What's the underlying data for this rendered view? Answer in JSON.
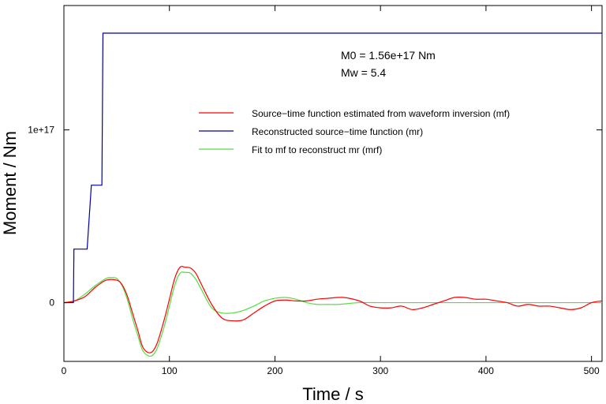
{
  "chart_data": {
    "type": "line",
    "xlabel": "Time / s",
    "ylabel": "Moment / Nm",
    "xlim": [
      0,
      510
    ],
    "ylim": [
      -3.4e+16,
      1.72e+17
    ],
    "xticks": [
      {
        "value": 0,
        "label": "0"
      },
      {
        "value": 100,
        "label": "100"
      },
      {
        "value": 200,
        "label": "200"
      },
      {
        "value": 300,
        "label": "300"
      },
      {
        "value": 400,
        "label": "400"
      },
      {
        "value": 500,
        "label": "500"
      }
    ],
    "yticks": [
      {
        "value": 0,
        "label": "0"
      },
      {
        "value": 1e+17,
        "label": "1e+17"
      }
    ],
    "grid": false,
    "annotations": [
      "M0 = 1.56e+17 Nm",
      "Mw = 5.4"
    ],
    "legend_position": "upper-right",
    "series": [
      {
        "name": "Source−time function estimated from waveform inversion (mf)",
        "color": "#ff0000",
        "x": [
          0,
          10,
          20,
          30,
          40,
          50,
          55,
          60,
          65,
          70,
          75,
          82,
          88,
          95,
          100,
          105,
          110,
          115,
          120,
          125,
          130,
          140,
          150,
          160,
          170,
          180,
          190,
          200,
          210,
          220,
          230,
          240,
          250,
          265,
          280,
          290,
          300,
          310,
          320,
          330,
          340,
          350,
          360,
          370,
          380,
          390,
          400,
          410,
          420,
          430,
          440,
          450,
          460,
          470,
          480,
          490,
          500,
          510
        ],
        "y": [
          0,
          1000000000000000.0,
          3500000000000000.0,
          9000000000000000.0,
          1.3e+16,
          1.3e+16,
          1.05e+16,
          4000000000000000.0,
          -6000000000000000.0,
          -1.6e+16,
          -2.6e+16,
          -2.9e+16,
          -2.4e+16,
          -1e+16,
          2000000000000000.0,
          1.4e+16,
          2.05e+16,
          2.05e+16,
          2e+16,
          1.7e+16,
          1.1e+16,
          -1000000000000000.0,
          -9000000000000000.0,
          -1.05e+16,
          -1e+16,
          -6000000000000000.0,
          -2000000000000000.0,
          1000000000000000.0,
          1500000000000000.0,
          1000000000000000.0,
          1000000000000000.0,
          2000000000000000.0,
          2500000000000000.0,
          3000000000000000.0,
          1000000000000000.0,
          -2000000000000000.0,
          -3000000000000000.0,
          -3000000000000000.0,
          -2000000000000000.0,
          -4000000000000000.0,
          -3000000000000000.0,
          -1000000000000000.0,
          1000000000000000.0,
          3000000000000000.0,
          3000000000000000.0,
          2000000000000000.0,
          2000000000000000.0,
          1000000000000000.0,
          0,
          -2000000000000000.0,
          -1000000000000000.0,
          -2000000000000000.0,
          -2000000000000000.0,
          -3000000000000000.0,
          -4000000000000000.0,
          -3000000000000000.0,
          0,
          1000000000000000.0
        ]
      },
      {
        "name": "Reconstructed source−time function (mr)",
        "color": "#0000aa",
        "x": [
          0,
          9,
          9.5,
          21,
          22,
          26,
          27,
          36,
          37,
          38,
          510
        ],
        "y": [
          0,
          0,
          3.1e+16,
          3.1e+16,
          3.1e+16,
          6.8e+16,
          6.8e+16,
          6.8e+16,
          1.56e+17,
          1.56e+17,
          1.56e+17
        ]
      },
      {
        "name": "Fit to mf to reconstruct mr (mrf)",
        "color": "#55dd44",
        "x": [
          0,
          10,
          20,
          30,
          40,
          45,
          50,
          55,
          60,
          65,
          70,
          75,
          82,
          88,
          95,
          100,
          105,
          110,
          115,
          120,
          125,
          130,
          140,
          150,
          160,
          170,
          180,
          190,
          200,
          210,
          220,
          230,
          240,
          250,
          260,
          280,
          300,
          320,
          340,
          360,
          380,
          400,
          420,
          440,
          460,
          480,
          500,
          510
        ],
        "y": [
          0,
          1000000000000000.0,
          5000000000000000.0,
          1e+16,
          1.4e+16,
          1.45e+16,
          1.4e+16,
          1e+16,
          2000000000000000.0,
          -9000000000000000.0,
          -1.9e+16,
          -2.8e+16,
          -3.1e+16,
          -2.7e+16,
          -1.4e+16,
          -2000000000000000.0,
          1e+16,
          1.7e+16,
          1.75e+16,
          1.7e+16,
          1.35e+16,
          8000000000000000.0,
          -3000000000000000.0,
          -6000000000000000.0,
          -6000000000000000.0,
          -4500000000000000.0,
          -2000000000000000.0,
          1000000000000000.0,
          2500000000000000.0,
          3000000000000000.0,
          2000000000000000.0,
          0,
          -1000000000000000.0,
          -1000000000000000.0,
          -1000000000000000.0,
          0,
          0,
          0,
          0,
          0,
          0,
          0,
          0,
          0,
          0,
          0,
          0,
          0
        ]
      }
    ]
  }
}
